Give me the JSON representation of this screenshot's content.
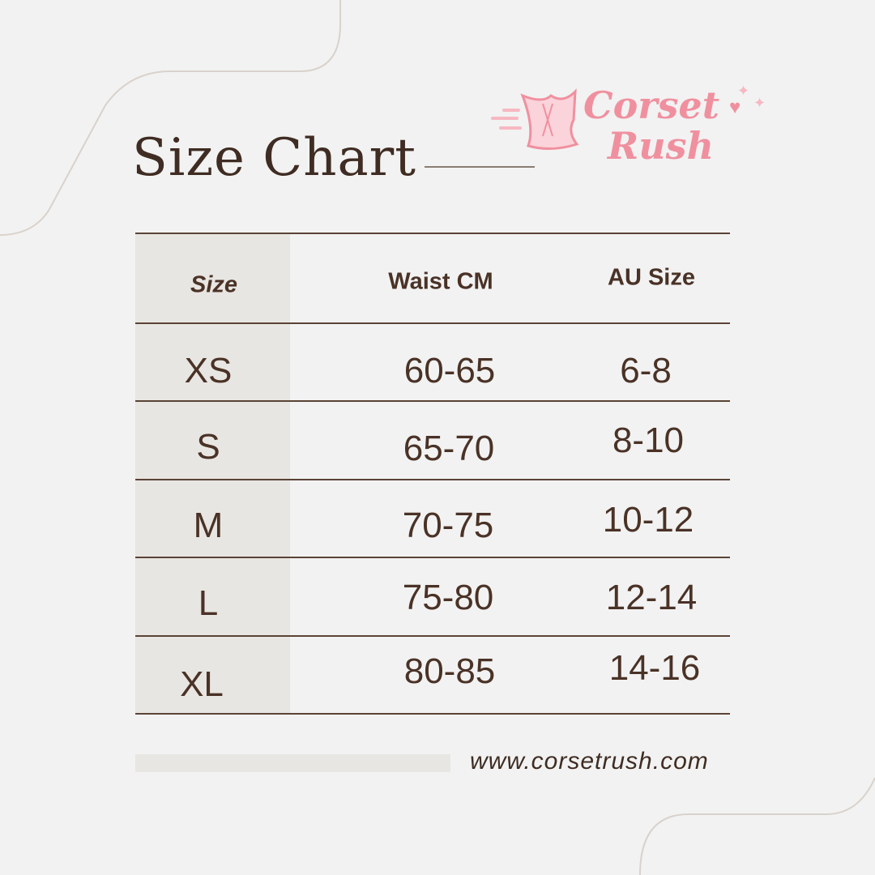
{
  "title": "Size Chart",
  "logo": {
    "line1": "Corset",
    "line2": "Rush",
    "color": "#f0909f"
  },
  "table": {
    "headers": [
      "Size",
      "Waist CM",
      "AU Size"
    ],
    "rows": [
      [
        "XS",
        "60-65",
        "6-8"
      ],
      [
        "S",
        "65-70",
        "8-10"
      ],
      [
        "M",
        "70-75",
        "10-12"
      ],
      [
        "L",
        "75-80",
        "12-14"
      ],
      [
        "XL",
        "80-85",
        "14-16"
      ]
    ]
  },
  "footer": {
    "url": "www.corsetrush.com"
  },
  "colors": {
    "background": "#f2f2f2",
    "text": "#4a3226",
    "shade": "#e8e6e2",
    "accent": "#f0909f"
  }
}
